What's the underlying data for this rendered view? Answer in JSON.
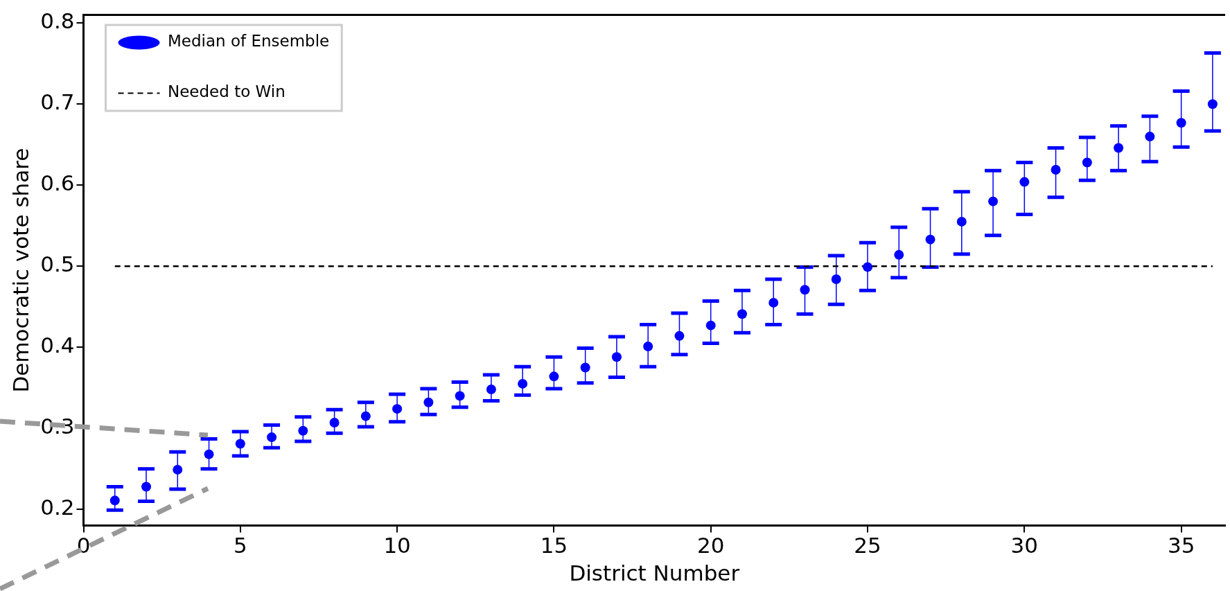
{
  "chart_data": {
    "type": "scatter",
    "xlabel": "District Number",
    "ylabel": "Democratic vote share",
    "x": [
      1,
      2,
      3,
      4,
      5,
      6,
      7,
      8,
      9,
      10,
      11,
      12,
      13,
      14,
      15,
      16,
      17,
      18,
      19,
      20,
      21,
      22,
      23,
      24,
      25,
      26,
      27,
      28,
      29,
      30,
      31,
      32,
      33,
      34,
      35,
      36
    ],
    "series": [
      {
        "name": "Median of Ensemble",
        "color": "#0000ff",
        "values": [
          0.211,
          0.228,
          0.249,
          0.268,
          0.281,
          0.289,
          0.297,
          0.307,
          0.315,
          0.324,
          0.332,
          0.34,
          0.348,
          0.355,
          0.364,
          0.375,
          0.388,
          0.401,
          0.414,
          0.427,
          0.441,
          0.455,
          0.471,
          0.484,
          0.499,
          0.514,
          0.533,
          0.555,
          0.58,
          0.604,
          0.619,
          0.628,
          0.646,
          0.66,
          0.677,
          0.7
        ],
        "errors": [
          [
            0.199,
            0.228
          ],
          [
            0.21,
            0.25
          ],
          [
            0.225,
            0.271
          ],
          [
            0.25,
            0.287
          ],
          [
            0.266,
            0.296
          ],
          [
            0.276,
            0.304
          ],
          [
            0.284,
            0.314
          ],
          [
            0.294,
            0.323
          ],
          [
            0.302,
            0.332
          ],
          [
            0.308,
            0.342
          ],
          [
            0.317,
            0.349
          ],
          [
            0.326,
            0.357
          ],
          [
            0.334,
            0.366
          ],
          [
            0.341,
            0.376
          ],
          [
            0.349,
            0.388
          ],
          [
            0.356,
            0.399
          ],
          [
            0.363,
            0.413
          ],
          [
            0.376,
            0.428
          ],
          [
            0.391,
            0.442
          ],
          [
            0.405,
            0.457
          ],
          [
            0.418,
            0.47
          ],
          [
            0.428,
            0.484
          ],
          [
            0.441,
            0.499
          ],
          [
            0.453,
            0.513
          ],
          [
            0.47,
            0.529
          ],
          [
            0.486,
            0.548
          ],
          [
            0.499,
            0.571
          ],
          [
            0.515,
            0.592
          ],
          [
            0.538,
            0.618
          ],
          [
            0.564,
            0.628
          ],
          [
            0.585,
            0.646
          ],
          [
            0.606,
            0.659
          ],
          [
            0.618,
            0.673
          ],
          [
            0.629,
            0.685
          ],
          [
            0.647,
            0.716
          ],
          [
            0.667,
            0.763
          ]
        ]
      }
    ],
    "ref_lines": [
      {
        "axis": "y",
        "value": 0.5,
        "label": "Needed to Win",
        "color": "#000000",
        "line_style": "dashed"
      }
    ],
    "xlim": [
      0,
      36.4
    ],
    "ylim": [
      0.18,
      0.81
    ],
    "xticks": [
      0,
      5,
      10,
      15,
      20,
      25,
      30,
      35
    ],
    "yticks": [
      0.2,
      0.3,
      0.4,
      0.5,
      0.6,
      0.7,
      0.8
    ],
    "grid": false,
    "legend": "top left",
    "marker": "circle"
  }
}
